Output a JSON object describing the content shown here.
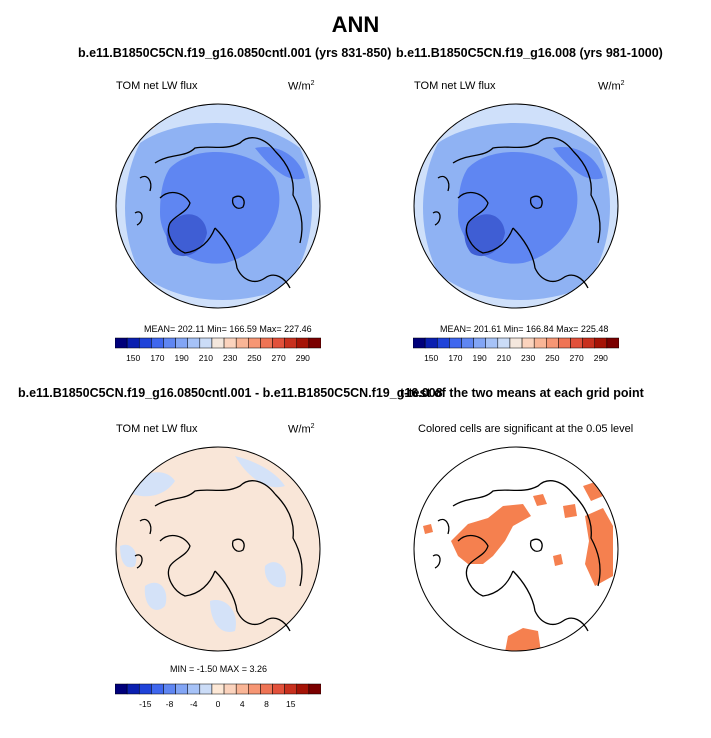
{
  "title": "ANN",
  "panels": [
    {
      "title": "b.e11.B1850C5CN.f19_g16.0850cntl.001 (yrs 831-850)",
      "variable": "TOM net LW flux",
      "units": "W/m",
      "units_exp": "2",
      "stats": "MEAN= 202.11  Min= 166.59  Max= 227.46"
    },
    {
      "title": "b.e11.B1850C5CN.f19_g16.008 (yrs 981-1000)",
      "variable": "TOM net LW flux",
      "units": "W/m",
      "units_exp": "2",
      "stats": "MEAN= 201.61  Min= 166.84  Max= 225.48"
    },
    {
      "title": "b.e11.B1850C5CN.f19_g16.0850cntl.001 - b.e11.B1850C5CN.f19_g16.008",
      "variable": "TOM net LW flux",
      "units": "W/m",
      "units_exp": "2",
      "stats": "MIN =  -1.50  MAX =   3.26"
    },
    {
      "title": "t-test of the two means at each grid point",
      "subtitle": "Colored cells are significant at the 0.05 level"
    }
  ],
  "colorbars": {
    "absolute": {
      "labels": [
        "150",
        "170",
        "190",
        "210",
        "230",
        "250",
        "270",
        "290"
      ],
      "colors": [
        "#00007a",
        "#0a1fb0",
        "#1f43d9",
        "#3f67ee",
        "#5f86f2",
        "#82a5f5",
        "#a6c2f7",
        "#cbdcf7",
        "#f4e7dd",
        "#fbd3bd",
        "#f9b596",
        "#f69674",
        "#ef7455",
        "#e2513b",
        "#c8301e",
        "#a51306",
        "#7b0000"
      ]
    },
    "difference": {
      "labels": [
        "-15",
        "-8",
        "-4",
        "0",
        "4",
        "8",
        "15"
      ],
      "colors": [
        "#00007a",
        "#0a1fb0",
        "#1f43d9",
        "#3f67ee",
        "#5f86f2",
        "#82a5f5",
        "#a6c2f7",
        "#cbdcf7",
        "#fde8d6",
        "#fbd3bd",
        "#f9b596",
        "#f69674",
        "#ef7455",
        "#e2513b",
        "#c8301e",
        "#a51306",
        "#7b0000"
      ]
    }
  },
  "map_colors": {
    "ocean_edge": "#cfe0fa",
    "mid_blue": "#8fb2f3",
    "deep_blue": "#5f86f2",
    "darkest_blue": "#3f5ed4",
    "warm": "#f9e6d8",
    "light_blue": "#d4e2f8",
    "significant": "#f5804f"
  }
}
